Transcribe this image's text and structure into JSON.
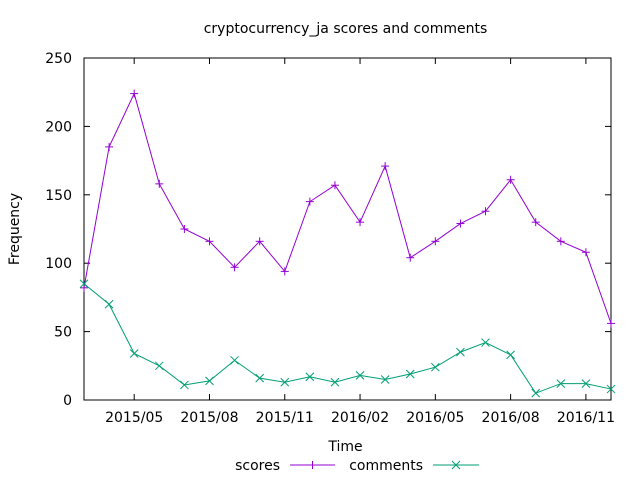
{
  "chart_data": {
    "type": "line",
    "title": "cryptocurrency_ja scores and comments",
    "xlabel": "Time",
    "ylabel": "Frequency",
    "ylim": [
      0,
      250
    ],
    "y_ticks": [
      0,
      50,
      100,
      150,
      200,
      250
    ],
    "x_range": [
      "2015-03",
      "2016-12"
    ],
    "x_ticks": [
      "2015/05",
      "2015/08",
      "2015/11",
      "2016/02",
      "2016/05",
      "2016/08",
      "2016/11"
    ],
    "x": [
      "2015-03",
      "2015-04",
      "2015-05",
      "2015-06",
      "2015-07",
      "2015-08",
      "2015-09",
      "2015-10",
      "2015-11",
      "2015-12",
      "2016-01",
      "2016-02",
      "2016-03",
      "2016-04",
      "2016-05",
      "2016-06",
      "2016-07",
      "2016-08",
      "2016-09",
      "2016-10",
      "2016-11",
      "2016-12"
    ],
    "series": [
      {
        "name": "scores",
        "color": "#9400d3",
        "marker": "plus",
        "values": [
          82,
          185,
          224,
          158,
          125,
          116,
          97,
          116,
          94,
          145,
          157,
          130,
          171,
          104,
          116,
          129,
          138,
          161,
          130,
          116,
          108,
          56
        ]
      },
      {
        "name": "comments",
        "color": "#009e73",
        "marker": "cross",
        "values": [
          85,
          70,
          34,
          25,
          11,
          14,
          29,
          16,
          13,
          17,
          13,
          18,
          15,
          19,
          24,
          35,
          42,
          33,
          5,
          12,
          12,
          8
        ]
      }
    ],
    "grid": false,
    "legend": "bottom"
  }
}
